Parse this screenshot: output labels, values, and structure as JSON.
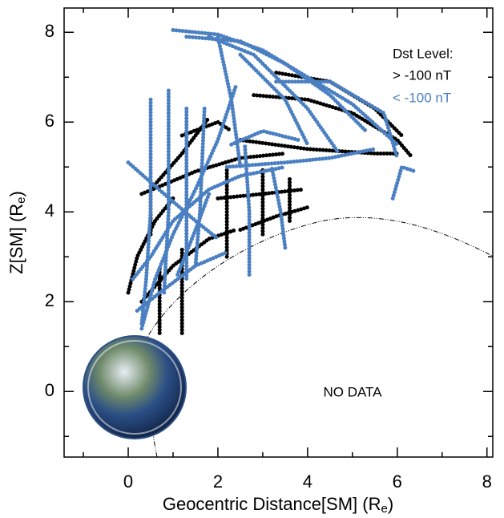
{
  "chart_data": {
    "type": "scatter",
    "xlabel_parts": [
      "Geocentric Distance[SM] (R",
      "e",
      ")"
    ],
    "ylabel_parts": [
      "Z[SM] (R",
      "e",
      ")"
    ],
    "legend_title": "Dst Level:",
    "annotation": "NO DATA",
    "xlim": [
      -1.43,
      8.13
    ],
    "ylim": [
      -1.46,
      8.54
    ],
    "xticks": [
      0,
      2,
      4,
      6,
      8
    ],
    "yticks": [
      0,
      2,
      4,
      6,
      8
    ],
    "xminor": [
      -1,
      1,
      3,
      5,
      7
    ],
    "yminor": [
      -1,
      1,
      3,
      5,
      7
    ],
    "series": [
      {
        "name": "> -100 nT",
        "color": "#000000",
        "x": [
          3.3,
          4.5,
          5.5,
          6.1,
          null,
          2.8,
          4,
          5,
          6,
          6.3,
          null,
          2.5,
          4,
          5.5,
          6,
          null,
          0.3,
          1.5,
          2.5,
          3.5,
          null,
          0.5,
          0.5,
          1.2,
          1.8,
          null,
          0,
          0.2,
          0.6,
          1,
          null,
          2,
          3,
          3.9,
          null,
          2.5,
          3.3,
          4,
          null,
          3,
          3,
          null,
          3.6,
          3.6,
          null,
          2.2,
          2.2,
          null,
          1.2,
          1.2,
          null,
          0.7,
          0.7,
          null,
          1.2,
          2,
          2.3,
          null,
          0.3,
          1,
          1.8,
          2.4
        ],
        "y": [
          7.1,
          6.9,
          6.3,
          5.7,
          null,
          6.6,
          6.5,
          6.2,
          5.6,
          5.25,
          null,
          5.6,
          5.4,
          5.3,
          5.3,
          null,
          4.4,
          4.9,
          5.2,
          5.3,
          null,
          3.5,
          4.5,
          5.3,
          6.1,
          null,
          2.2,
          3,
          3.8,
          4.3,
          null,
          4.3,
          4.4,
          4.5,
          null,
          3.6,
          3.9,
          4.1,
          null,
          3.5,
          5,
          null,
          3.8,
          4.8,
          null,
          3,
          5,
          null,
          1.3,
          3.2,
          null,
          1.3,
          2.8,
          null,
          5.7,
          6,
          5.8,
          null,
          2,
          2.8,
          3.4,
          3.6
        ]
      },
      {
        "name": "< -100 nT",
        "color": "#4a7fc1",
        "x": [
          1,
          2,
          3,
          4,
          5,
          6,
          null,
          1.3,
          2.5,
          3.5,
          4.5,
          5.3,
          null,
          1.8,
          2.8,
          4,
          4.7,
          null,
          2.5,
          3.5,
          4,
          null,
          2,
          2.3,
          2.5,
          null,
          3.3,
          4.5,
          5.7,
          6,
          null,
          5.9,
          6.1,
          6.4,
          null,
          2.2,
          3.5,
          4.5,
          5.5,
          null,
          0,
          0.8,
          1.5,
          2,
          null,
          0.5,
          0.5,
          0.4,
          0.3,
          null,
          0.9,
          0.9,
          0.8,
          null,
          1.3,
          1.3,
          1.3,
          null,
          1.7,
          1.6,
          1.5,
          null,
          0.1,
          0.5,
          1,
          1.8,
          2.5,
          3.5,
          null,
          2.3,
          3,
          3.8,
          null,
          3.5,
          3.4,
          3.2,
          null,
          2.7,
          2.7,
          2.6,
          null,
          0.3,
          0.6,
          1,
          1.5,
          2,
          2.4,
          null,
          0.2,
          0.7,
          1.5,
          2.2,
          null,
          1.1,
          1.5,
          1.8
        ],
        "y": [
          8.05,
          7.95,
          7.6,
          7,
          6.4,
          5.5,
          null,
          7.9,
          7.8,
          7.3,
          6.6,
          5.8,
          null,
          7.9,
          7.5,
          6.3,
          5.3,
          null,
          7.5,
          6.5,
          5.5,
          null,
          7.9,
          6.5,
          5,
          null,
          6.9,
          6.9,
          6.2,
          5.2,
          null,
          4.3,
          5,
          4.9,
          null,
          5,
          5.1,
          5.2,
          5.4,
          null,
          5.1,
          4.4,
          3.8,
          3.4,
          null,
          6.5,
          4,
          2.5,
          1.5,
          null,
          6.7,
          4,
          2.2,
          null,
          6.3,
          3.5,
          2.5,
          null,
          6.3,
          4,
          2.8,
          null,
          2.5,
          3,
          3.8,
          4.5,
          4.8,
          5,
          null,
          5.5,
          5.8,
          5.6,
          null,
          3.2,
          4,
          5,
          null,
          2.6,
          4,
          5.5,
          null,
          1.4,
          2.5,
          3.5,
          4.5,
          5.6,
          6.8,
          null,
          1.8,
          2.2,
          2.8,
          3.1,
          null,
          2.6,
          3.6,
          4.4
        ]
      }
    ]
  }
}
